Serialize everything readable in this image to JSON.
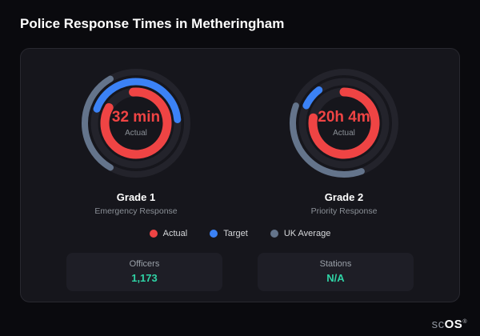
{
  "page": {
    "title": "Police Response Times in Metheringham"
  },
  "brand": {
    "prefix": "sc",
    "suffix": "OS",
    "registered": "®"
  },
  "legend": [
    {
      "label": "Actual",
      "color": "#ef4444"
    },
    {
      "label": "Target",
      "color": "#3b82f6"
    },
    {
      "label": "UK Average",
      "color": "#64748b"
    }
  ],
  "stats": [
    {
      "label": "Officers",
      "value": "1,173"
    },
    {
      "label": "Stations",
      "value": "N/A"
    }
  ],
  "chart_data": {
    "type": "gauge",
    "colors": {
      "actual": "#ef4444",
      "target": "#3b82f6",
      "uk_average": "#64748b",
      "track": "#23232b"
    },
    "gauges": [
      {
        "name": "Grade 1",
        "subtitle": "Emergency Response",
        "center_value": "32 min",
        "center_label": "Actual",
        "rings": [
          {
            "series": "uk_average",
            "radius": 64,
            "width": 8,
            "start": -150,
            "sweep": 120
          },
          {
            "series": "target",
            "radius": 52,
            "width": 9,
            "start": -70,
            "sweep": 155
          },
          {
            "series": "actual",
            "radius": 39,
            "width": 11,
            "start": -5,
            "sweep": 305
          }
        ]
      },
      {
        "name": "Grade 2",
        "subtitle": "Priority Response",
        "center_value": "20h 4m",
        "center_label": "Actual",
        "rings": [
          {
            "series": "uk_average",
            "radius": 64,
            "width": 8,
            "start": 160,
            "sweep": 130
          },
          {
            "series": "target",
            "radius": 52,
            "width": 9,
            "start": -65,
            "sweep": 28
          },
          {
            "series": "actual",
            "radius": 39,
            "width": 11,
            "start": 0,
            "sweep": 280
          }
        ]
      }
    ]
  }
}
